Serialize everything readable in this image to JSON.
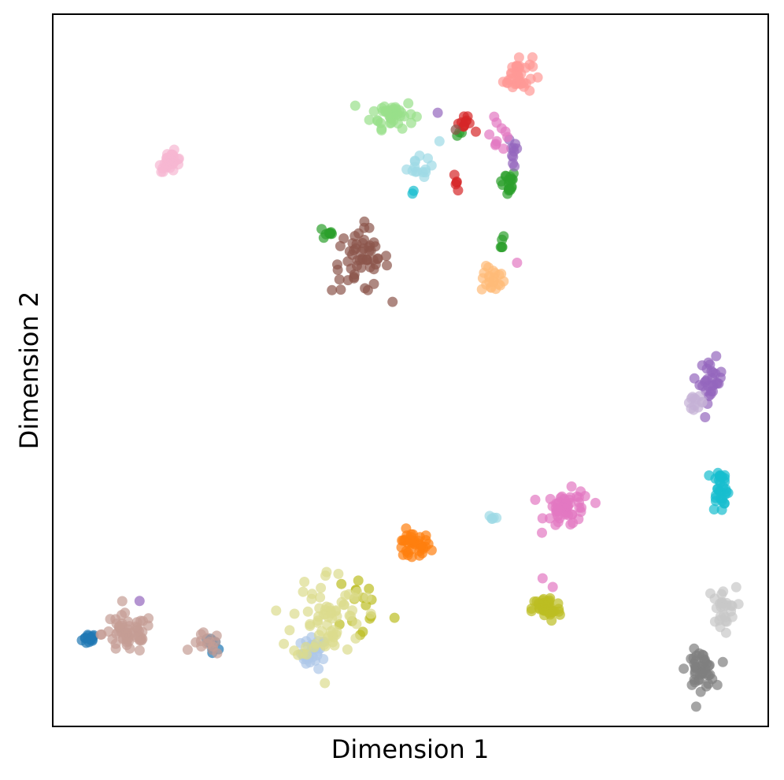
{
  "chart_data": {
    "type": "scatter",
    "title": "",
    "xlabel": "Dimension 1",
    "ylabel": "Dimension 2",
    "xlim": [
      0,
      100
    ],
    "ylim": [
      0,
      100
    ],
    "grid": false,
    "legend": "none",
    "ticks": "none",
    "marker_alpha": 0.7,
    "series": [
      {
        "color": "#1f77b4",
        "clusters": [
          {
            "center": [
              5.1,
              12.3
            ],
            "spread": [
              0.5,
              0.4
            ],
            "n": 16
          },
          {
            "center": [
              22.5,
              11.9
            ],
            "spread": [
              0.6,
              0.6
            ],
            "n": 9
          }
        ]
      },
      {
        "color": "#aec7e8",
        "clusters": [
          {
            "center": [
              36.5,
              10.3
            ],
            "spread": [
              0.9,
              1.1
            ],
            "n": 30
          }
        ]
      },
      {
        "color": "#ff7f0e",
        "clusters": [
          {
            "center": [
              50.2,
              25.3
            ],
            "spread": [
              1.3,
              1.0
            ],
            "n": 38
          }
        ]
      },
      {
        "color": "#ffbb78",
        "clusters": [
          {
            "center": [
              61.5,
              62.7
            ],
            "spread": [
              0.8,
              0.9
            ],
            "n": 22
          }
        ]
      },
      {
        "color": "#2ca02c",
        "clusters": [
          {
            "center": [
              38.5,
              69.3
            ],
            "spread": [
              0.4,
              0.5
            ],
            "n": 8
          },
          {
            "center": [
              63.5,
              76.3
            ],
            "spread": [
              0.6,
              0.9
            ],
            "n": 18
          },
          {
            "center": [
              62.8,
              68.4
            ],
            "spread": [
              0.2,
              1.0
            ],
            "n": 5
          },
          {
            "center": [
              56.8,
              83.3
            ],
            "spread": [
              0.3,
              0.3
            ],
            "n": 3
          }
        ]
      },
      {
        "color": "#98df8a",
        "clusters": [
          {
            "center": [
              47.5,
              86.0
            ],
            "spread": [
              1.5,
              1.0
            ],
            "n": 42
          }
        ]
      },
      {
        "color": "#d62728",
        "clusters": [
          {
            "center": [
              57.5,
              84.5
            ],
            "spread": [
              0.6,
              0.5
            ],
            "n": 11
          },
          {
            "center": [
              56.5,
              76.5
            ],
            "spread": [
              0.2,
              0.8
            ],
            "n": 5
          }
        ]
      },
      {
        "color": "#ff9896",
        "clusters": [
          {
            "center": [
              65.0,
              91.5
            ],
            "spread": [
              1.0,
              1.4
            ],
            "n": 36
          }
        ]
      },
      {
        "color": "#9467bd",
        "clusters": [
          {
            "center": [
              92.0,
              48.5
            ],
            "spread": [
              0.8,
              1.5
            ],
            "n": 30
          },
          {
            "center": [
              64.5,
              80.5
            ],
            "spread": [
              0.4,
              1.5
            ],
            "n": 10
          },
          {
            "center": [
              53.8,
              86.6
            ],
            "spread": [
              0.2,
              0.2
            ],
            "n": 1
          },
          {
            "center": [
              12.3,
              17.7
            ],
            "spread": [
              0.2,
              0.2
            ],
            "n": 1
          }
        ]
      },
      {
        "color": "#c5b0d5",
        "clusters": [
          {
            "center": [
              89.8,
              45.5
            ],
            "spread": [
              0.6,
              0.4
            ],
            "n": 12
          }
        ]
      },
      {
        "color": "#8c564b",
        "clusters": [
          {
            "center": [
              43.0,
              65.5
            ],
            "spread": [
              2.0,
              2.3
            ],
            "n": 55
          },
          {
            "center": [
              56.3,
              83.8
            ],
            "spread": [
              0.2,
              0.2
            ],
            "n": 1
          }
        ]
      },
      {
        "color": "#c49c94",
        "clusters": [
          {
            "center": [
              10.5,
              13.0
            ],
            "spread": [
              1.8,
              1.4
            ],
            "n": 55
          },
          {
            "center": [
              21.5,
              11.5
            ],
            "spread": [
              1.0,
              0.8
            ],
            "n": 14
          }
        ]
      },
      {
        "color": "#e377c2",
        "clusters": [
          {
            "center": [
              72.0,
              30.5
            ],
            "spread": [
              1.6,
              1.3
            ],
            "n": 50
          },
          {
            "center": [
              62.0,
              84.0
            ],
            "spread": [
              1.0,
              1.6
            ],
            "n": 10
          },
          {
            "center": [
              69.8,
              21.0
            ],
            "spread": [
              0.6,
              1.0
            ],
            "n": 2
          },
          {
            "center": [
              64.5,
              64.7
            ],
            "spread": [
              0.3,
              0.3
            ],
            "n": 1
          }
        ]
      },
      {
        "color": "#f7b6d2",
        "clusters": [
          {
            "center": [
              16.5,
              79.3
            ],
            "spread": [
              0.8,
              0.7
            ],
            "n": 30
          }
        ]
      },
      {
        "color": "#7f7f7f",
        "clusters": [
          {
            "center": [
              90.5,
              8.0
            ],
            "spread": [
              1.0,
              1.3
            ],
            "n": 42
          }
        ]
      },
      {
        "color": "#c7c7c7",
        "clusters": [
          {
            "center": [
              93.5,
              16.5
            ],
            "spread": [
              1.0,
              1.5
            ],
            "n": 28
          }
        ]
      },
      {
        "color": "#bcbd22",
        "clusters": [
          {
            "center": [
              69.0,
              16.5
            ],
            "spread": [
              1.0,
              0.9
            ],
            "n": 46
          },
          {
            "center": [
              43.5,
              17.0
            ],
            "spread": [
              2.0,
              2.8
            ],
            "n": 16
          }
        ]
      },
      {
        "color": "#dbdb8d",
        "clusters": [
          {
            "center": [
              38.5,
              15.5
            ],
            "spread": [
              2.5,
              3.3
            ],
            "n": 70
          }
        ]
      },
      {
        "color": "#17becf",
        "clusters": [
          {
            "center": [
              93.3,
              33.5
            ],
            "spread": [
              0.6,
              1.6
            ],
            "n": 32
          },
          {
            "center": [
              50.3,
              75.0
            ],
            "spread": [
              0.3,
              0.3
            ],
            "n": 2
          }
        ]
      },
      {
        "color": "#9edae5",
        "clusters": [
          {
            "center": [
              50.5,
              78.5
            ],
            "spread": [
              1.2,
              0.7
            ],
            "n": 14
          },
          {
            "center": [
              61.3,
              29.2
            ],
            "spread": [
              0.3,
              0.2
            ],
            "n": 5
          },
          {
            "center": [
              54.0,
              82.0
            ],
            "spread": [
              0.2,
              0.2
            ],
            "n": 1
          }
        ]
      }
    ]
  }
}
